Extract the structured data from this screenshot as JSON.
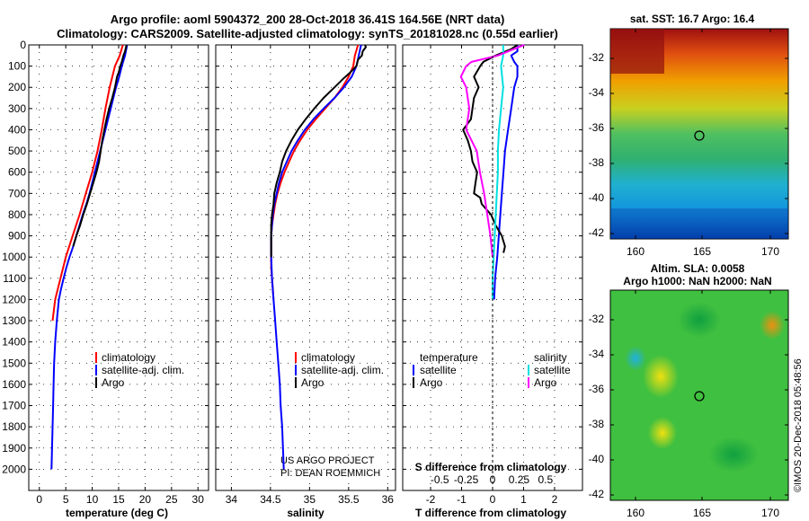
{
  "header": {
    "title1": "Argo profile: aoml 5904372_200 28-Oct-2018 36.41S 164.56E (NRT data)",
    "title2": "Climatology: CARS2009. Satellite-adjusted climatology: synTS_20181028.nc (0.55d earlier)"
  },
  "colors": {
    "climatology": "#ff0000",
    "satellite": "#0000ff",
    "argo": "#000000",
    "sat_salinity": "#00e0e0",
    "argo_salinity": "#ff00ff"
  },
  "chart_data": [
    {
      "type": "line",
      "title": "",
      "xlabel": "temperature (deg C)",
      "ylabel": "",
      "xlim": [
        -2,
        32
      ],
      "ylim": [
        2100,
        0
      ],
      "xticks": [
        0,
        5,
        10,
        15,
        20,
        25,
        30
      ],
      "xtick_labels": [
        "0",
        "5",
        "10",
        "15",
        "20",
        "25",
        "30"
      ],
      "yticks": [
        0,
        100,
        200,
        300,
        400,
        500,
        600,
        700,
        800,
        900,
        1000,
        1100,
        1200,
        1300,
        1400,
        1500,
        1600,
        1700,
        1800,
        1900,
        2000
      ],
      "ytick_labels": [
        "0",
        "100",
        "200",
        "300",
        "400",
        "500",
        "600",
        "700",
        "800",
        "900",
        "1000",
        "1100",
        "1200",
        "1300",
        "1400",
        "1500",
        "1600",
        "1700",
        "1800",
        "1900",
        "2000"
      ],
      "legend": [
        "climatology",
        "satellite-adj. clim.",
        "Argo"
      ],
      "series": [
        {
          "name": "climatology",
          "color": "#ff0000",
          "x": [
            15.8,
            15.2,
            14.3,
            13.3,
            12.5,
            11.8,
            11.0,
            10.0,
            8.8,
            7.6,
            6.3,
            5.0,
            4.0,
            3.0,
            2.5
          ],
          "y": [
            0,
            50,
            100,
            200,
            300,
            400,
            500,
            600,
            700,
            800,
            900,
            1000,
            1100,
            1200,
            1300
          ]
        },
        {
          "name": "satellite-adj. clim.",
          "color": "#0000ff",
          "x": [
            16.6,
            16.2,
            15.6,
            14.5,
            13.5,
            12.5,
            11.5,
            10.5,
            9.5,
            8.2,
            7.0,
            5.7,
            4.6,
            3.7,
            3.0,
            2.7,
            2.5,
            2.3
          ],
          "y": [
            0,
            50,
            100,
            200,
            300,
            400,
            500,
            600,
            700,
            800,
            900,
            1000,
            1100,
            1200,
            1400,
            1600,
            1800,
            2000
          ],
          "dense_profile": "0,16.6;50,16.2;100,15.6;150,15.1;200,14.5;250,14.0;300,13.5;350,13.0;400,12.5;450,12.0;500,11.5;550,11.0;600,10.5;650,10.0;700,9.5;750,8.9;800,8.2;850,7.6;900,7.0;950,6.4;1000,5.7;1050,5.1;1100,4.6;1150,4.1;1200,3.7;1300,3.3;1400,3.0;1500,2.8;1600,2.7;1700,2.6;1800,2.5;1900,2.4;2000,2.3"
        },
        {
          "name": "Argo",
          "color": "#000000",
          "x": [
            16.5,
            16.4,
            15.9,
            15.3,
            14.7,
            13.8,
            12.7,
            11.9,
            11.3,
            10.2,
            9.0,
            7.7,
            6.4
          ],
          "y": [
            0,
            10,
            50,
            100,
            150,
            250,
            350,
            450,
            550,
            650,
            750,
            850,
            950
          ],
          "dense_profile": "0,16.5;10,16.4;30,16.2;50,15.9;80,15.6;100,15.3;130,15.0;150,14.7;200,14.3;250,13.8;300,13.2;350,12.7;400,12.3;450,11.9;500,11.6;550,11.3;600,10.8;650,10.2;700,9.6;750,9.0;800,8.3;850,7.7;900,7.0;950,6.4"
        }
      ]
    },
    {
      "type": "line",
      "title": "",
      "xlabel": "salinity",
      "ylabel": "",
      "xlim": [
        33.8,
        36.1
      ],
      "ylim": [
        2100,
        0
      ],
      "xticks": [
        34,
        34.5,
        35,
        35.5,
        36
      ],
      "xtick_labels": [
        "34",
        "34.5",
        "35",
        "35.5",
        "36"
      ],
      "legend": [
        "climatology",
        "satellite-adj. clim.",
        "Argo"
      ],
      "annotations": [
        "US ARGO PROJECT",
        "PI: DEAN ROEMMICH"
      ],
      "series": [
        {
          "name": "climatology",
          "color": "#ff0000",
          "dense_profile": "0,35.62;50,35.58;100,35.56;150,35.50;200,35.42;250,35.32;300,35.20;350,35.08;400,34.97;450,34.88;500,34.80;550,34.74;600,34.68;650,34.63;700,34.59;750,34.56;800,34.54;850,34.52;900,34.51;950,34.51;1000,34.51;1050,34.51;1100,34.52;1150,34.53;1200,34.54"
        },
        {
          "name": "satellite-adj. clim.",
          "color": "#0000ff",
          "dense_profile": "0,35.66;50,35.63;100,35.60;150,35.54;200,35.44;250,35.32;300,35.18;350,35.05;400,34.94;450,34.85;500,34.77;550,34.71;600,34.65;650,34.61;700,34.58;750,34.55;800,34.53;850,34.52;900,34.51;1000,34.51;1100,34.52;1200,34.54;1300,34.56;1400,34.58;1500,34.60;1600,34.62;1700,34.63;1800,34.65;1900,34.66;2000,34.67"
        },
        {
          "name": "Argo",
          "color": "#000000",
          "dense_profile": "0,35.71;10,35.72;30,35.68;50,35.67;70,35.62;100,35.60;130,35.52;160,35.43;200,35.32;250,35.18;300,35.06;350,34.95;400,34.85;450,34.77;500,34.70;550,34.65;600,34.62;650,34.58;700,34.55;750,34.54;800,34.52;850,34.51;900,34.51;950,34.51;1000,34.51"
        }
      ]
    },
    {
      "type": "line",
      "title": "",
      "xlabel": "T difference from climatology",
      "xlabel2": "S difference from climatology",
      "xlim": [
        -2.9,
        2.9
      ],
      "ylim": [
        2100,
        0
      ],
      "xticks": [
        -2,
        -1,
        0,
        1,
        2
      ],
      "xtick_labels": [
        "-2",
        "-1",
        "0",
        "1",
        "2"
      ],
      "sticks": [
        -0.5,
        -0.25,
        0,
        0.25,
        0.5
      ],
      "stick_labels": [
        "-0.5",
        "-0.25",
        "0",
        "0.25",
        "0.5"
      ],
      "legend_temperature": {
        "heading": "temperature",
        "items": [
          "satellite",
          "Argo"
        ]
      },
      "legend_salinity": {
        "heading": "salinity",
        "items": [
          "satellite",
          "Argo"
        ]
      },
      "series": [
        {
          "name": "T satellite",
          "color": "#0000ff",
          "dense_profile": "0,0.8;30,0.8;50,0.6;80,0.7;100,0.8;150,0.8;200,0.7;300,0.6;400,0.5;500,0.4;600,0.35;700,0.3;800,0.25;900,0.2;1000,0.15;1100,0.08;1200,0.05"
        },
        {
          "name": "T Argo",
          "color": "#000000",
          "dense_profile": "0,0.8;20,0.6;50,0.1;80,-0.3;100,-0.4;150,-0.6;200,-0.45;250,-0.6;300,-0.65;350,-0.7;400,-0.95;450,-0.8;500,-0.7;550,-0.65;600,-0.5;650,-0.55;700,-0.6;720,-0.4;750,-0.35;800,-0.05;850,0.1;900,0.3;950,0.4;980,0.35"
        },
        {
          "name": "S satellite",
          "color": "#00e0e0",
          "dense_profile": "0,0.1;50,0.1;100,0.08;200,0.1;300,0.08;400,0.06;500,0.05;600,0.05;700,0.04;800,0.03;900,0.02;1000,0.01;1100,0;1200,0"
        },
        {
          "name": "S Argo",
          "color": "#ff00ff",
          "dense_profile": "0,0.3;20,0.2;50,0.05;80,-0.2;100,-0.25;150,-0.3;200,-0.25;300,-0.22;400,-0.25;500,-0.15;600,-0.12;700,-0.08;800,-0.05;900,-0.02;1000,0"
        }
      ]
    }
  ],
  "map_top": {
    "title": "sat. SST: 16.7 Argo: 16.4",
    "xticks": [
      "160",
      "165",
      "170"
    ],
    "yticks": [
      "-32",
      "-34",
      "-36",
      "-38",
      "-40",
      "-42"
    ]
  },
  "map_bottom": {
    "title1": "Altim. SLA: 0.0058",
    "title2": "Argo h1000: NaN h2000: NaN",
    "xticks": [
      "160",
      "165",
      "170"
    ],
    "yticks": [
      "-32",
      "-34",
      "-36",
      "-38",
      "-40",
      "-42"
    ]
  },
  "watermark": "©IMOS 20-Dec-2018 05:48:56"
}
